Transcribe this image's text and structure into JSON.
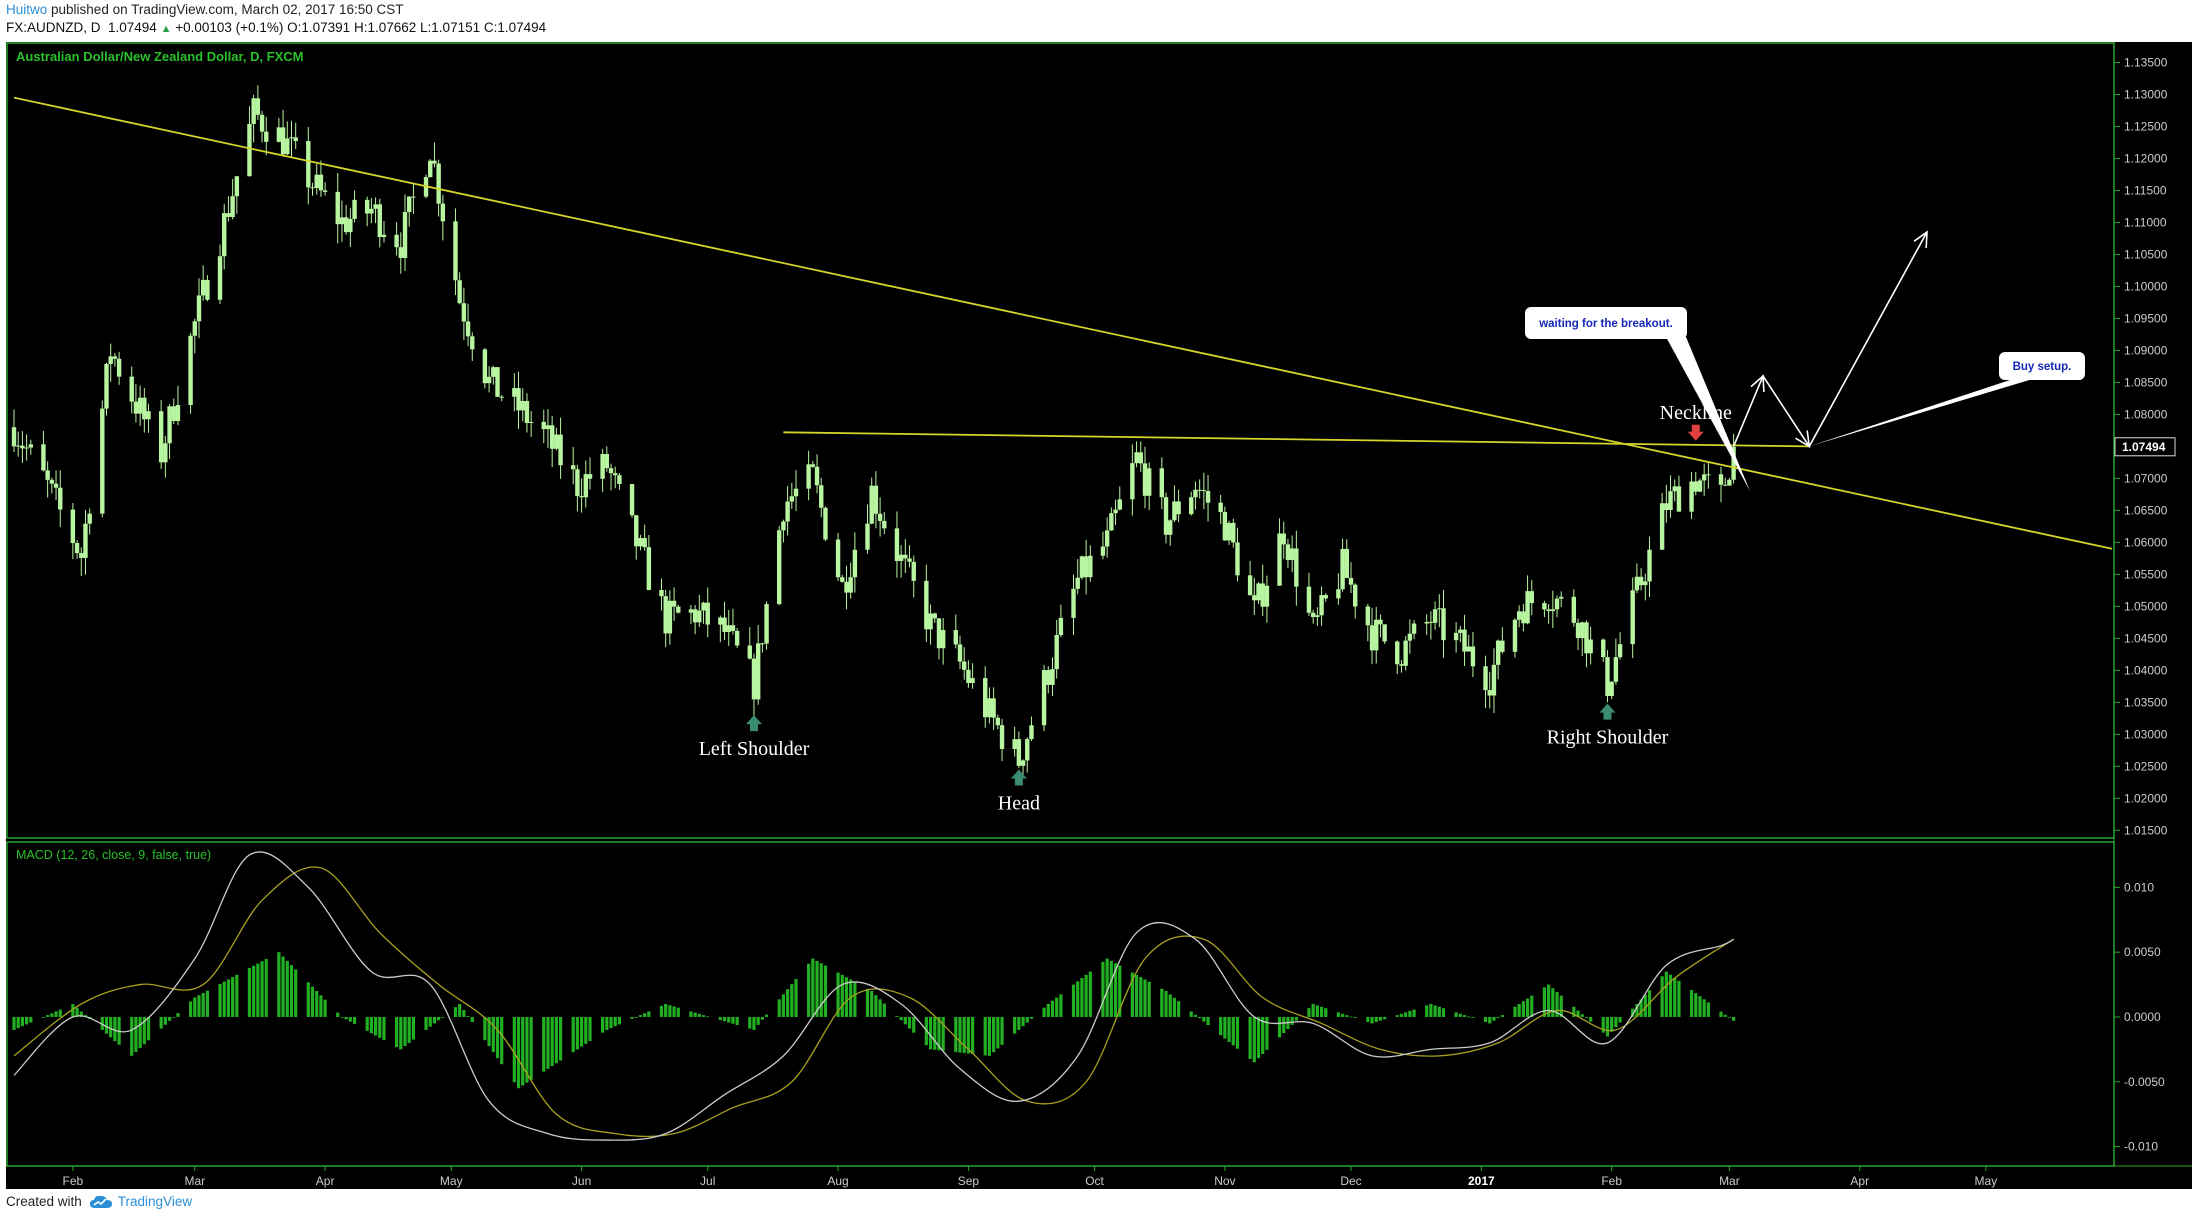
{
  "header": {
    "author": "Huitwo",
    "published_text": "published on TradingView.com, March 02, 2017 16:50 CST",
    "symbol": "FX:AUDNZD, D",
    "last": "1.07494",
    "change": "+0.00103 (+0.1%)",
    "open_label": "O:",
    "open": "1.07391",
    "high_label": "H:",
    "high": "1.07662",
    "low_label": "L:",
    "low": "1.07151",
    "close_label": "C:",
    "close": "1.07494"
  },
  "footer": {
    "created_with": "Created with",
    "brand": "TradingView"
  },
  "colors": {
    "background": "#000000",
    "grid": "#1c3a1c",
    "border": "#2ea52e",
    "candle": "#b8f5a0",
    "macd_line": "#cccccc",
    "signal_line": "#a8a020",
    "histogram": "#22b022",
    "trendline": "#d4d42a",
    "marker": "#3a8c72",
    "neckline_marker": "#e04040"
  },
  "chart_data": [
    {
      "type": "candlestick",
      "title": "Australian Dollar/New Zealand Dollar, D, FXCM",
      "x_labels": [
        "Feb",
        "Mar",
        "Apr",
        "May",
        "Jun",
        "Jul",
        "Aug",
        "Sep",
        "Oct",
        "Nov",
        "Dec",
        "2017",
        "Feb",
        "Mar",
        "Apr",
        "May"
      ],
      "y_ticks": [
        "1.13500",
        "1.13000",
        "1.12500",
        "1.12000",
        "1.11500",
        "1.11000",
        "1.10500",
        "1.10000",
        "1.09500",
        "1.09000",
        "1.08500",
        "1.08000",
        "1.07500",
        "1.07000",
        "1.06500",
        "1.06000",
        "1.05500",
        "1.05000",
        "1.04500",
        "1.04000",
        "1.03500",
        "1.03000",
        "1.02500",
        "1.02000",
        "1.01500"
      ],
      "y_range": [
        1.0138,
        1.1382
      ],
      "last_price_label": "1.07494",
      "approx_close_path": [
        {
          "date": "2016-01-18",
          "close": 1.078
        },
        {
          "date": "2016-01-25",
          "close": 1.07
        },
        {
          "date": "2016-02-03",
          "close": 1.058
        },
        {
          "date": "2016-02-10",
          "close": 1.09
        },
        {
          "date": "2016-02-15",
          "close": 1.083
        },
        {
          "date": "2016-02-22",
          "close": 1.074
        },
        {
          "date": "2016-03-01",
          "close": 1.094
        },
        {
          "date": "2016-03-08",
          "close": 1.11
        },
        {
          "date": "2016-03-15",
          "close": 1.127
        },
        {
          "date": "2016-03-22",
          "close": 1.123
        },
        {
          "date": "2016-03-29",
          "close": 1.116
        },
        {
          "date": "2016-04-05",
          "close": 1.11
        },
        {
          "date": "2016-04-12",
          "close": 1.112
        },
        {
          "date": "2016-04-19",
          "close": 1.107
        },
        {
          "date": "2016-04-26",
          "close": 1.122
        },
        {
          "date": "2016-05-03",
          "close": 1.098
        },
        {
          "date": "2016-05-10",
          "close": 1.085
        },
        {
          "date": "2016-05-17",
          "close": 1.081
        },
        {
          "date": "2016-05-24",
          "close": 1.076
        },
        {
          "date": "2016-05-31",
          "close": 1.069
        },
        {
          "date": "2016-06-07",
          "close": 1.072
        },
        {
          "date": "2016-06-14",
          "close": 1.06
        },
        {
          "date": "2016-06-21",
          "close": 1.048
        },
        {
          "date": "2016-06-28",
          "close": 1.049
        },
        {
          "date": "2016-07-05",
          "close": 1.046
        },
        {
          "date": "2016-07-12",
          "close": 1.038
        },
        {
          "date": "2016-07-19",
          "close": 1.066
        },
        {
          "date": "2016-07-26",
          "close": 1.07
        },
        {
          "date": "2016-08-02",
          "close": 1.053
        },
        {
          "date": "2016-08-09",
          "close": 1.068
        },
        {
          "date": "2016-08-16",
          "close": 1.057
        },
        {
          "date": "2016-08-23",
          "close": 1.047
        },
        {
          "date": "2016-08-30",
          "close": 1.041
        },
        {
          "date": "2016-09-06",
          "close": 1.033
        },
        {
          "date": "2016-09-13",
          "close": 1.026
        },
        {
          "date": "2016-09-20",
          "close": 1.04
        },
        {
          "date": "2016-09-27",
          "close": 1.054
        },
        {
          "date": "2016-10-04",
          "close": 1.06
        },
        {
          "date": "2016-10-11",
          "close": 1.073
        },
        {
          "date": "2016-10-18",
          "close": 1.063
        },
        {
          "date": "2016-10-25",
          "close": 1.069
        },
        {
          "date": "2016-11-01",
          "close": 1.063
        },
        {
          "date": "2016-11-08",
          "close": 1.049
        },
        {
          "date": "2016-11-15",
          "close": 1.062
        },
        {
          "date": "2016-11-22",
          "close": 1.046
        },
        {
          "date": "2016-11-29",
          "close": 1.056
        },
        {
          "date": "2016-12-06",
          "close": 1.046
        },
        {
          "date": "2016-12-13",
          "close": 1.043
        },
        {
          "date": "2016-12-20",
          "close": 1.048
        },
        {
          "date": "2016-12-27",
          "close": 1.044
        },
        {
          "date": "2017-01-03",
          "close": 1.039
        },
        {
          "date": "2017-01-10",
          "close": 1.05
        },
        {
          "date": "2017-01-17",
          "close": 1.052
        },
        {
          "date": "2017-01-24",
          "close": 1.048
        },
        {
          "date": "2017-01-31",
          "close": 1.038
        },
        {
          "date": "2017-02-07",
          "close": 1.052
        },
        {
          "date": "2017-02-14",
          "close": 1.066
        },
        {
          "date": "2017-02-21",
          "close": 1.07
        },
        {
          "date": "2017-02-27",
          "close": 1.067
        },
        {
          "date": "2017-03-02",
          "close": 1.07494
        }
      ],
      "neckline": {
        "from": {
          "date": "2016-07-19",
          "price": 1.0772
        },
        "to": {
          "date": "2017-03-20",
          "price": 1.075
        }
      },
      "trendline": {
        "from": {
          "date": "2016-01-18",
          "price": 1.1295
        },
        "to": {
          "date": "2017-05-31",
          "price": 1.059
        }
      },
      "annotations": [
        {
          "label": "Left Shoulder",
          "date": "2016-07-12",
          "price": 1.033
        },
        {
          "label": "Head",
          "date": "2016-09-13",
          "price": 1.0245
        },
        {
          "label": "Right Shoulder",
          "date": "2017-01-31",
          "price": 1.0348
        },
        {
          "label": "Neckline",
          "date": "2017-02-21",
          "price": 1.079
        },
        {
          "label": "waiting for the breakout.",
          "kind": "callout"
        },
        {
          "label": "Buy setup.",
          "kind": "callout"
        }
      ],
      "projected_path": [
        {
          "date": "2017-03-02",
          "price": 1.075
        },
        {
          "date": "2017-03-09",
          "price": 1.086
        },
        {
          "date": "2017-03-20",
          "price": 1.075
        },
        {
          "date": "2017-04-17",
          "price": 1.1085
        }
      ]
    },
    {
      "type": "line",
      "title": "MACD (12, 26, close, 9, false, true)",
      "y_ticks": [
        "0.010",
        "0.0050",
        "0.0000",
        "-0.0050",
        "-0.010"
      ],
      "y_range": [
        -0.0115,
        0.0135
      ],
      "series": [
        {
          "name": "MACD",
          "style": "line",
          "values": [
            {
              "date": "2016-01-18",
              "value": -0.0045
            },
            {
              "date": "2016-02-01",
              "value": 0.0
            },
            {
              "date": "2016-02-15",
              "value": -0.001
            },
            {
              "date": "2016-03-01",
              "value": 0.0045
            },
            {
              "date": "2016-03-14",
              "value": 0.0125
            },
            {
              "date": "2016-03-28",
              "value": 0.01
            },
            {
              "date": "2016-04-12",
              "value": 0.0035
            },
            {
              "date": "2016-04-26",
              "value": 0.0025
            },
            {
              "date": "2016-05-10",
              "value": -0.0065
            },
            {
              "date": "2016-05-24",
              "value": -0.009
            },
            {
              "date": "2016-06-07",
              "value": -0.0095
            },
            {
              "date": "2016-06-21",
              "value": -0.009
            },
            {
              "date": "2016-07-05",
              "value": -0.006
            },
            {
              "date": "2016-07-19",
              "value": -0.003
            },
            {
              "date": "2016-08-02",
              "value": 0.0025
            },
            {
              "date": "2016-08-16",
              "value": 0.001
            },
            {
              "date": "2016-08-30",
              "value": -0.004
            },
            {
              "date": "2016-09-13",
              "value": -0.0065
            },
            {
              "date": "2016-09-27",
              "value": -0.003
            },
            {
              "date": "2016-10-11",
              "value": 0.0065
            },
            {
              "date": "2016-10-25",
              "value": 0.006
            },
            {
              "date": "2016-11-08",
              "value": 0.0
            },
            {
              "date": "2016-11-22",
              "value": -0.0005
            },
            {
              "date": "2016-12-06",
              "value": -0.003
            },
            {
              "date": "2016-12-20",
              "value": -0.0025
            },
            {
              "date": "2017-01-03",
              "value": -0.002
            },
            {
              "date": "2017-01-17",
              "value": 0.0005
            },
            {
              "date": "2017-01-31",
              "value": -0.002
            },
            {
              "date": "2017-02-14",
              "value": 0.004
            },
            {
              "date": "2017-02-27",
              "value": 0.0055
            },
            {
              "date": "2017-03-02",
              "value": 0.006
            }
          ]
        },
        {
          "name": "Signal",
          "style": "line",
          "values": [
            {
              "date": "2016-01-18",
              "value": -0.003
            },
            {
              "date": "2016-02-03",
              "value": 0.001
            },
            {
              "date": "2016-02-17",
              "value": 0.0025
            },
            {
              "date": "2016-03-03",
              "value": 0.0025
            },
            {
              "date": "2016-03-17",
              "value": 0.009
            },
            {
              "date": "2016-03-31",
              "value": 0.0115
            },
            {
              "date": "2016-04-14",
              "value": 0.0065
            },
            {
              "date": "2016-04-28",
              "value": 0.0025
            },
            {
              "date": "2016-05-12",
              "value": -0.001
            },
            {
              "date": "2016-05-26",
              "value": -0.0075
            },
            {
              "date": "2016-06-09",
              "value": -0.009
            },
            {
              "date": "2016-06-23",
              "value": -0.009
            },
            {
              "date": "2016-07-07",
              "value": -0.007
            },
            {
              "date": "2016-07-21",
              "value": -0.005
            },
            {
              "date": "2016-08-04",
              "value": 0.0015
            },
            {
              "date": "2016-08-18",
              "value": 0.0015
            },
            {
              "date": "2016-09-01",
              "value": -0.0025
            },
            {
              "date": "2016-09-15",
              "value": -0.0065
            },
            {
              "date": "2016-09-29",
              "value": -0.005
            },
            {
              "date": "2016-10-13",
              "value": 0.0045
            },
            {
              "date": "2016-10-27",
              "value": 0.006
            },
            {
              "date": "2016-11-10",
              "value": 0.0015
            },
            {
              "date": "2016-11-24",
              "value": -0.0005
            },
            {
              "date": "2016-12-08",
              "value": -0.0025
            },
            {
              "date": "2016-12-22",
              "value": -0.003
            },
            {
              "date": "2017-01-05",
              "value": -0.002
            },
            {
              "date": "2017-01-19",
              "value": 0.0005
            },
            {
              "date": "2017-02-02",
              "value": -0.001
            },
            {
              "date": "2017-02-16",
              "value": 0.003
            },
            {
              "date": "2017-03-02",
              "value": 0.006
            }
          ]
        },
        {
          "name": "Histogram",
          "style": "bars",
          "values": [
            {
              "date": "2016-01-18",
              "value": -0.001
            },
            {
              "date": "2016-02-01",
              "value": 0.001
            },
            {
              "date": "2016-02-15",
              "value": -0.003
            },
            {
              "date": "2016-03-01",
              "value": 0.0015
            },
            {
              "date": "2016-03-21",
              "value": 0.005
            },
            {
              "date": "2016-04-05",
              "value": 0.0
            },
            {
              "date": "2016-04-19",
              "value": -0.0025
            },
            {
              "date": "2016-05-03",
              "value": 0.001
            },
            {
              "date": "2016-05-17",
              "value": -0.0055
            },
            {
              "date": "2016-06-07",
              "value": -0.001
            },
            {
              "date": "2016-06-21",
              "value": 0.001
            },
            {
              "date": "2016-07-12",
              "value": -0.001
            },
            {
              "date": "2016-07-26",
              "value": 0.0045
            },
            {
              "date": "2016-08-09",
              "value": 0.002
            },
            {
              "date": "2016-08-23",
              "value": -0.0025
            },
            {
              "date": "2016-09-06",
              "value": -0.003
            },
            {
              "date": "2016-09-20",
              "value": 0.001
            },
            {
              "date": "2016-10-04",
              "value": 0.0045
            },
            {
              "date": "2016-10-18",
              "value": 0.002
            },
            {
              "date": "2016-11-08",
              "value": -0.0035
            },
            {
              "date": "2016-11-22",
              "value": 0.001
            },
            {
              "date": "2016-12-06",
              "value": -0.0005
            },
            {
              "date": "2016-12-20",
              "value": 0.001
            },
            {
              "date": "2017-01-03",
              "value": -0.0005
            },
            {
              "date": "2017-01-17",
              "value": 0.0025
            },
            {
              "date": "2017-01-31",
              "value": -0.0015
            },
            {
              "date": "2017-02-14",
              "value": 0.0035
            },
            {
              "date": "2017-03-02",
              "value": -0.0003
            }
          ]
        }
      ]
    }
  ]
}
